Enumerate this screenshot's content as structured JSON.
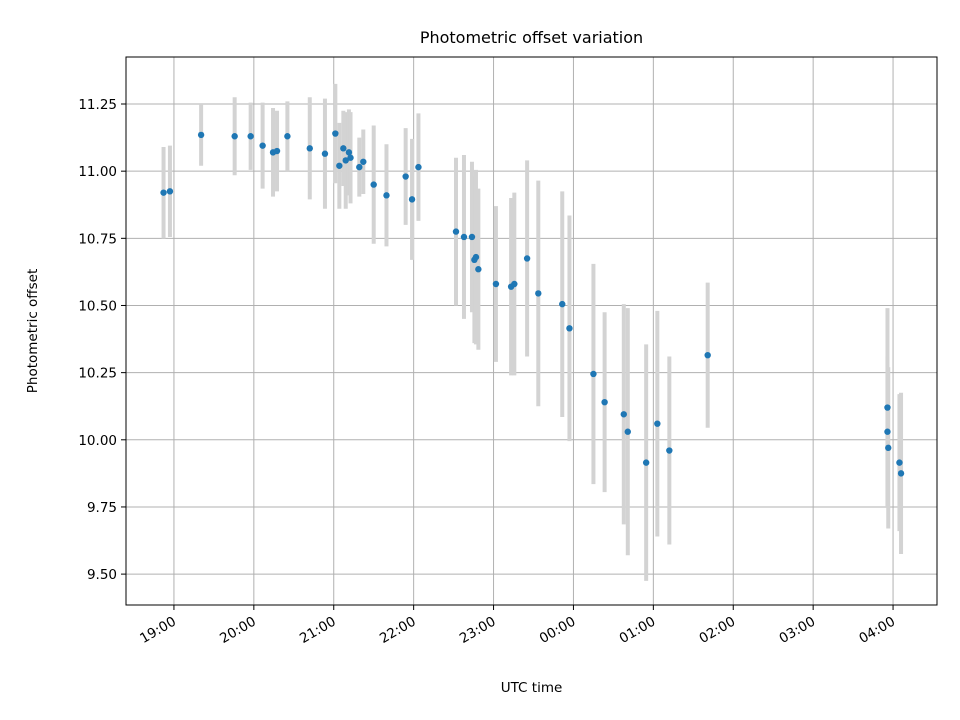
{
  "chart_data": {
    "type": "scatter",
    "title": "Photometric offset variation",
    "xlabel": "UTC time",
    "ylabel": "Photometric offset",
    "x_unit": "hours since 00:00 UTC (negative = previous day)",
    "xlim": [
      -5.6,
      4.55
    ],
    "ylim": [
      9.385,
      11.425
    ],
    "grid": true,
    "x_ticks": [
      {
        "value": -5,
        "label": "19:00"
      },
      {
        "value": -4,
        "label": "20:00"
      },
      {
        "value": -3,
        "label": "21:00"
      },
      {
        "value": -2,
        "label": "22:00"
      },
      {
        "value": -1,
        "label": "23:00"
      },
      {
        "value": 0,
        "label": "00:00"
      },
      {
        "value": 1,
        "label": "01:00"
      },
      {
        "value": 2,
        "label": "02:00"
      },
      {
        "value": 3,
        "label": "03:00"
      },
      {
        "value": 4,
        "label": "04:00"
      }
    ],
    "y_ticks": [
      {
        "value": 9.5,
        "label": "9.50"
      },
      {
        "value": 9.75,
        "label": "9.75"
      },
      {
        "value": 10.0,
        "label": "10.00"
      },
      {
        "value": 10.25,
        "label": "10.25"
      },
      {
        "value": 10.5,
        "label": "10.50"
      },
      {
        "value": 10.75,
        "label": "10.75"
      },
      {
        "value": 11.0,
        "label": "11.00"
      },
      {
        "value": 11.25,
        "label": "11.25"
      }
    ],
    "series": [
      {
        "name": "offset",
        "marker_color": "#1f77b4",
        "errorbar_color": "#d3d3d3",
        "points": [
          {
            "x": -5.13,
            "y": 10.92,
            "err": 0.17
          },
          {
            "x": -5.05,
            "y": 10.925,
            "err": 0.17
          },
          {
            "x": -4.66,
            "y": 11.135,
            "err": 0.115
          },
          {
            "x": -4.24,
            "y": 11.13,
            "err": 0.145
          },
          {
            "x": -4.04,
            "y": 11.13,
            "err": 0.125
          },
          {
            "x": -3.89,
            "y": 11.095,
            "err": 0.16
          },
          {
            "x": -3.76,
            "y": 11.07,
            "err": 0.165
          },
          {
            "x": -3.71,
            "y": 11.075,
            "err": 0.15
          },
          {
            "x": -3.58,
            "y": 11.13,
            "err": 0.13
          },
          {
            "x": -3.3,
            "y": 11.085,
            "err": 0.19
          },
          {
            "x": -3.11,
            "y": 11.065,
            "err": 0.205
          },
          {
            "x": -2.98,
            "y": 11.14,
            "err": 0.185
          },
          {
            "x": -2.93,
            "y": 11.02,
            "err": 0.16
          },
          {
            "x": -2.88,
            "y": 11.085,
            "err": 0.14
          },
          {
            "x": -2.85,
            "y": 11.04,
            "err": 0.18
          },
          {
            "x": -2.81,
            "y": 11.07,
            "err": 0.16
          },
          {
            "x": -2.79,
            "y": 11.05,
            "err": 0.17
          },
          {
            "x": -2.68,
            "y": 11.015,
            "err": 0.11
          },
          {
            "x": -2.63,
            "y": 11.035,
            "err": 0.12
          },
          {
            "x": -2.5,
            "y": 10.95,
            "err": 0.22
          },
          {
            "x": -2.34,
            "y": 10.91,
            "err": 0.19
          },
          {
            "x": -2.1,
            "y": 10.98,
            "err": 0.18
          },
          {
            "x": -2.02,
            "y": 10.895,
            "err": 0.225
          },
          {
            "x": -1.94,
            "y": 11.015,
            "err": 0.2
          },
          {
            "x": -1.47,
            "y": 10.775,
            "err": 0.275
          },
          {
            "x": -1.37,
            "y": 10.755,
            "err": 0.305
          },
          {
            "x": -1.27,
            "y": 10.755,
            "err": 0.28
          },
          {
            "x": -1.24,
            "y": 10.67,
            "err": 0.31
          },
          {
            "x": -1.22,
            "y": 10.68,
            "err": 0.325
          },
          {
            "x": -1.19,
            "y": 10.635,
            "err": 0.3
          },
          {
            "x": -0.97,
            "y": 10.58,
            "err": 0.29
          },
          {
            "x": -0.78,
            "y": 10.57,
            "err": 0.33
          },
          {
            "x": -0.74,
            "y": 10.58,
            "err": 0.34
          },
          {
            "x": -0.58,
            "y": 10.675,
            "err": 0.365
          },
          {
            "x": -0.44,
            "y": 10.545,
            "err": 0.42
          },
          {
            "x": -0.14,
            "y": 10.505,
            "err": 0.42
          },
          {
            "x": -0.05,
            "y": 10.415,
            "err": 0.42
          },
          {
            "x": 0.25,
            "y": 10.245,
            "err": 0.41
          },
          {
            "x": 0.39,
            "y": 10.14,
            "err": 0.335
          },
          {
            "x": 0.63,
            "y": 10.095,
            "err": 0.41
          },
          {
            "x": 0.68,
            "y": 10.03,
            "err": 0.46
          },
          {
            "x": 0.91,
            "y": 9.915,
            "err": 0.44
          },
          {
            "x": 1.05,
            "y": 10.06,
            "err": 0.42
          },
          {
            "x": 1.2,
            "y": 9.96,
            "err": 0.35
          },
          {
            "x": 1.68,
            "y": 10.315,
            "err": 0.27
          },
          {
            "x": 3.93,
            "y": 10.12,
            "err": 0.37
          },
          {
            "x": 3.93,
            "y": 10.03,
            "err": 0.28
          },
          {
            "x": 3.94,
            "y": 9.97,
            "err": 0.3
          },
          {
            "x": 4.08,
            "y": 9.915,
            "err": 0.255
          },
          {
            "x": 4.1,
            "y": 9.875,
            "err": 0.3
          }
        ]
      }
    ]
  }
}
